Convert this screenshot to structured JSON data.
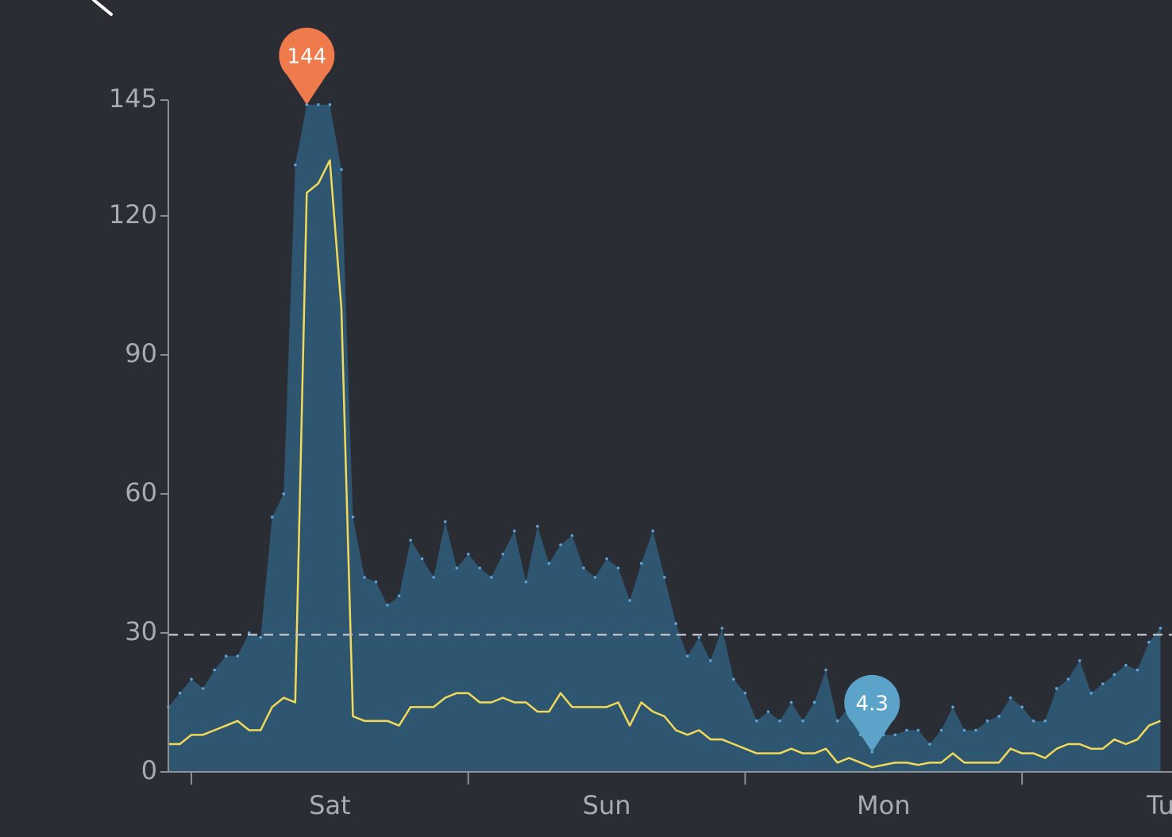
{
  "chart_data": {
    "type": "area-line",
    "xlim": [
      -2,
      85
    ],
    "ylim": [
      0,
      145
    ],
    "yticks": [
      0,
      30,
      60,
      90,
      120,
      145
    ],
    "day_boundaries": [
      0,
      24,
      48,
      72
    ],
    "day_labels": [
      {
        "value": 12,
        "label": "Sat"
      },
      {
        "value": 36,
        "label": "Sun"
      },
      {
        "value": 60,
        "label": "Mon"
      },
      {
        "value": 84,
        "label": "Tu"
      }
    ],
    "x": [
      -2,
      -1,
      0,
      1,
      2,
      3,
      4,
      5,
      6,
      7,
      8,
      9,
      10,
      11,
      12,
      13,
      14,
      15,
      16,
      17,
      18,
      19,
      20,
      21,
      22,
      23,
      24,
      25,
      26,
      27,
      28,
      29,
      30,
      31,
      32,
      33,
      34,
      35,
      36,
      37,
      38,
      39,
      40,
      41,
      42,
      43,
      44,
      45,
      46,
      47,
      48,
      49,
      50,
      51,
      52,
      53,
      54,
      55,
      56,
      57,
      58,
      59,
      60,
      61,
      62,
      63,
      64,
      65,
      66,
      67,
      68,
      69,
      70,
      71,
      72,
      73,
      74,
      75,
      76,
      77,
      78,
      79,
      80,
      81,
      82,
      83,
      84
    ],
    "series": [
      {
        "color": "#2e5670",
        "dot_color": "#5ba3d9",
        "values": [
          14,
          17,
          20,
          18,
          22,
          25,
          25,
          30,
          29,
          55,
          60,
          131,
          144,
          144,
          144,
          130,
          55,
          42,
          41,
          36,
          38,
          50,
          46,
          42,
          54,
          44,
          47,
          44,
          42,
          47,
          52,
          41,
          53,
          45,
          49,
          51,
          44,
          42,
          46,
          44,
          37,
          45,
          52,
          42,
          32,
          25,
          29,
          24,
          31,
          20,
          17,
          11,
          13,
          11,
          15,
          11,
          15,
          22,
          11,
          14,
          8,
          4.3,
          8,
          8,
          9,
          9,
          6,
          9,
          14,
          9,
          9,
          11,
          12,
          16,
          14,
          11,
          11,
          18,
          20,
          24,
          17,
          19,
          21,
          23,
          22,
          28,
          31
        ]
      },
      {
        "color": "#f3d95a",
        "values": [
          6,
          6,
          8,
          8,
          9,
          10,
          11,
          9,
          9,
          14,
          16,
          15,
          125,
          127,
          132,
          100,
          12,
          11,
          11,
          11,
          10,
          14,
          14,
          14,
          16,
          17,
          17,
          15,
          15,
          16,
          15,
          15,
          13,
          13,
          17,
          14,
          14,
          14,
          14,
          15,
          10,
          15,
          13,
          12,
          9,
          8,
          9,
          7,
          7,
          6,
          5,
          4,
          4,
          4,
          5,
          4,
          4,
          5,
          2,
          3,
          2,
          1,
          1.5,
          2,
          2,
          1.5,
          2,
          2,
          4,
          2,
          2,
          2,
          2,
          5,
          4,
          4,
          3,
          5,
          6,
          6,
          5,
          5,
          7,
          6,
          7,
          10,
          11
        ]
      }
    ],
    "reference_line": {
      "value": 29.6,
      "color": "#b8bcc4"
    },
    "annotations": [
      {
        "x": 10,
        "value": 144,
        "color": "#ef7b4d"
      },
      {
        "x": 59,
        "value": 4.3,
        "color": "#5ba3c9"
      }
    ]
  }
}
